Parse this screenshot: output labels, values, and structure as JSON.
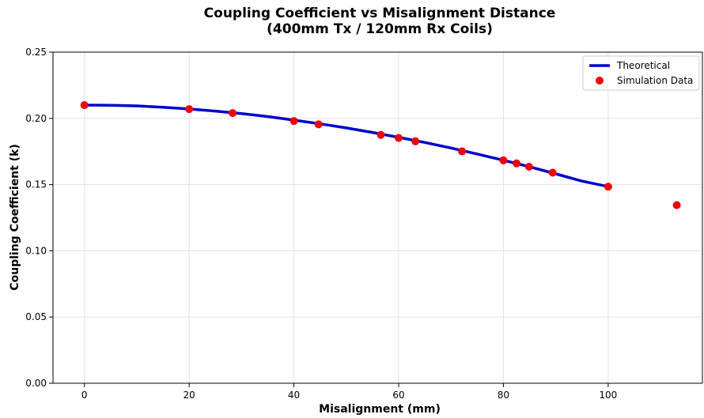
{
  "chart_data": {
    "type": "line",
    "title_lines": [
      "Coupling Coefficient vs Misalignment Distance",
      "(400mm Tx / 120mm Rx Coils)"
    ],
    "xlabel": "Misalignment (mm)",
    "ylabel": "Coupling Coefficient (k)",
    "xlim": [
      -6,
      118
    ],
    "ylim": [
      0,
      0.25
    ],
    "x_ticks": [
      0,
      20,
      40,
      60,
      80,
      100
    ],
    "x_tick_labels": [
      "0",
      "20",
      "40",
      "60",
      "80",
      "100"
    ],
    "y_ticks": [
      0.0,
      0.05,
      0.1,
      0.15,
      0.2,
      0.25
    ],
    "y_tick_labels": [
      "0.00",
      "0.05",
      "0.10",
      "0.15",
      "0.20",
      "0.25"
    ],
    "grid": true,
    "legend_position": "top-right",
    "series": [
      {
        "name": "Theoretical",
        "kind": "line",
        "color": "#0000cc",
        "x": [
          0,
          5,
          10,
          15,
          20,
          25,
          30,
          35,
          40,
          45,
          50,
          55,
          60,
          65,
          70,
          75,
          80,
          85,
          90,
          95,
          100
        ],
        "y": [
          0.21,
          0.2099,
          0.2094,
          0.2084,
          0.2071,
          0.2055,
          0.2036,
          0.2014,
          0.1987,
          0.1959,
          0.1928,
          0.1894,
          0.1857,
          0.1818,
          0.1776,
          0.1731,
          0.1684,
          0.1634,
          0.1581,
          0.1526,
          0.1485
        ]
      },
      {
        "name": "Simulation Data",
        "kind": "scatter",
        "color": "#ee0000",
        "x": [
          0,
          20,
          28.3,
          40,
          44.7,
          56.6,
          60,
          63.2,
          72.1,
          80,
          82.5,
          84.9,
          89.4,
          100,
          113.1
        ],
        "y": [
          0.21,
          0.207,
          0.204,
          0.198,
          0.1955,
          0.1875,
          0.1852,
          0.1827,
          0.1751,
          0.1683,
          0.166,
          0.1635,
          0.159,
          0.1484,
          0.1345
        ]
      }
    ]
  }
}
